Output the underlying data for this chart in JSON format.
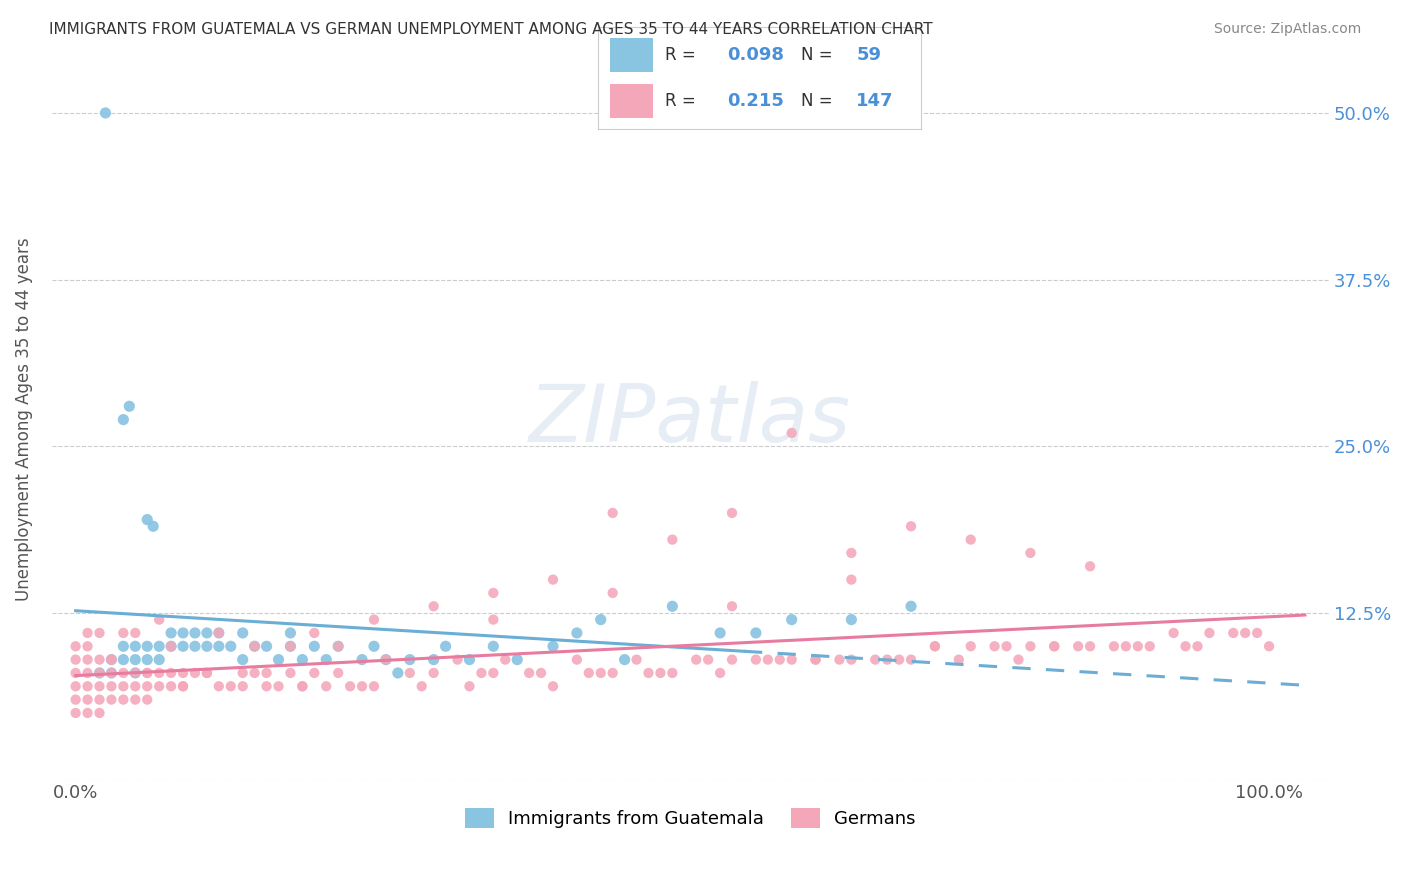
{
  "title": "IMMIGRANTS FROM GUATEMALA VS GERMAN UNEMPLOYMENT AMONG AGES 35 TO 44 YEARS CORRELATION CHART",
  "source": "Source: ZipAtlas.com",
  "ylabel": "Unemployment Among Ages 35 to 44 years",
  "ylim": [
    0,
    0.54
  ],
  "xlim": [
    -0.02,
    1.05
  ],
  "legend_r1": "0.098",
  "legend_n1": "59",
  "legend_r2": "0.215",
  "legend_n2": "147",
  "color_blue": "#89C4E1",
  "color_pink": "#F4A7B9",
  "trend_blue": "#6AAED6",
  "trend_pink": "#E87CA0",
  "label_color": "#4A90D9",
  "watermark": "ZIPatlas",
  "scatter_blue_x": [
    0.025,
    0.04,
    0.045,
    0.06,
    0.065,
    0.02,
    0.03,
    0.03,
    0.04,
    0.04,
    0.05,
    0.05,
    0.05,
    0.06,
    0.06,
    0.07,
    0.07,
    0.08,
    0.08,
    0.09,
    0.09,
    0.1,
    0.1,
    0.11,
    0.11,
    0.12,
    0.12,
    0.13,
    0.14,
    0.14,
    0.15,
    0.16,
    0.17,
    0.18,
    0.18,
    0.19,
    0.2,
    0.21,
    0.22,
    0.24,
    0.25,
    0.26,
    0.27,
    0.28,
    0.3,
    0.31,
    0.33,
    0.35,
    0.37,
    0.4,
    0.42,
    0.44,
    0.46,
    0.5,
    0.54,
    0.57,
    0.6,
    0.65,
    0.7
  ],
  "scatter_blue_y": [
    0.5,
    0.27,
    0.28,
    0.195,
    0.19,
    0.08,
    0.09,
    0.08,
    0.09,
    0.1,
    0.1,
    0.09,
    0.08,
    0.09,
    0.1,
    0.09,
    0.1,
    0.1,
    0.11,
    0.1,
    0.11,
    0.1,
    0.11,
    0.1,
    0.11,
    0.1,
    0.11,
    0.1,
    0.11,
    0.09,
    0.1,
    0.1,
    0.09,
    0.1,
    0.11,
    0.09,
    0.1,
    0.09,
    0.1,
    0.09,
    0.1,
    0.09,
    0.08,
    0.09,
    0.09,
    0.1,
    0.09,
    0.1,
    0.09,
    0.1,
    0.11,
    0.12,
    0.09,
    0.13,
    0.11,
    0.11,
    0.12,
    0.12,
    0.13
  ],
  "scatter_pink_x": [
    0.0,
    0.0,
    0.0,
    0.0,
    0.0,
    0.0,
    0.01,
    0.01,
    0.01,
    0.01,
    0.01,
    0.01,
    0.01,
    0.02,
    0.02,
    0.02,
    0.02,
    0.02,
    0.03,
    0.03,
    0.03,
    0.03,
    0.04,
    0.04,
    0.04,
    0.05,
    0.05,
    0.05,
    0.06,
    0.06,
    0.06,
    0.07,
    0.07,
    0.08,
    0.08,
    0.09,
    0.09,
    0.1,
    0.11,
    0.12,
    0.13,
    0.14,
    0.15,
    0.16,
    0.17,
    0.18,
    0.19,
    0.2,
    0.21,
    0.22,
    0.25,
    0.28,
    0.3,
    0.33,
    0.35,
    0.38,
    0.4,
    0.43,
    0.45,
    0.48,
    0.5,
    0.53,
    0.55,
    0.58,
    0.6,
    0.62,
    0.65,
    0.68,
    0.7,
    0.72,
    0.75,
    0.78,
    0.8,
    0.82,
    0.85,
    0.87,
    0.9,
    0.92,
    0.95,
    0.97,
    1.0,
    0.6,
    0.55,
    0.7,
    0.75,
    0.8,
    0.85,
    0.65,
    0.5,
    0.45,
    0.4,
    0.35,
    0.3,
    0.25,
    0.2,
    0.55,
    0.45,
    0.35,
    0.65,
    0.15,
    0.05,
    0.07,
    0.12,
    0.08,
    0.18,
    0.22,
    0.26,
    0.32,
    0.36,
    0.42,
    0.47,
    0.52,
    0.57,
    0.62,
    0.67,
    0.72,
    0.77,
    0.82,
    0.88,
    0.93,
    0.98,
    0.03,
    0.06,
    0.09,
    0.14,
    0.19,
    0.24,
    0.29,
    0.34,
    0.39,
    0.44,
    0.49,
    0.54,
    0.59,
    0.64,
    0.69,
    0.74,
    0.79,
    0.84,
    0.89,
    0.94,
    0.99,
    0.02,
    0.04,
    0.11,
    0.16,
    0.23
  ],
  "scatter_pink_y": [
    0.1,
    0.09,
    0.08,
    0.07,
    0.06,
    0.05,
    0.1,
    0.09,
    0.08,
    0.07,
    0.06,
    0.05,
    0.11,
    0.09,
    0.08,
    0.07,
    0.06,
    0.05,
    0.09,
    0.08,
    0.07,
    0.06,
    0.08,
    0.07,
    0.06,
    0.08,
    0.07,
    0.06,
    0.08,
    0.07,
    0.06,
    0.08,
    0.07,
    0.08,
    0.07,
    0.08,
    0.07,
    0.08,
    0.08,
    0.07,
    0.07,
    0.08,
    0.08,
    0.07,
    0.07,
    0.08,
    0.07,
    0.08,
    0.07,
    0.08,
    0.07,
    0.08,
    0.08,
    0.07,
    0.08,
    0.08,
    0.07,
    0.08,
    0.08,
    0.08,
    0.08,
    0.09,
    0.09,
    0.09,
    0.09,
    0.09,
    0.09,
    0.09,
    0.09,
    0.1,
    0.1,
    0.1,
    0.1,
    0.1,
    0.1,
    0.1,
    0.1,
    0.11,
    0.11,
    0.11,
    0.1,
    0.26,
    0.2,
    0.19,
    0.18,
    0.17,
    0.16,
    0.17,
    0.18,
    0.2,
    0.15,
    0.14,
    0.13,
    0.12,
    0.11,
    0.13,
    0.14,
    0.12,
    0.15,
    0.1,
    0.11,
    0.12,
    0.11,
    0.1,
    0.1,
    0.1,
    0.09,
    0.09,
    0.09,
    0.09,
    0.09,
    0.09,
    0.09,
    0.09,
    0.09,
    0.1,
    0.1,
    0.1,
    0.1,
    0.1,
    0.11,
    0.09,
    0.08,
    0.07,
    0.07,
    0.07,
    0.07,
    0.07,
    0.08,
    0.08,
    0.08,
    0.08,
    0.08,
    0.09,
    0.09,
    0.09,
    0.09,
    0.09,
    0.1,
    0.1,
    0.1,
    0.11,
    0.11,
    0.11,
    0.08,
    0.08,
    0.07
  ]
}
